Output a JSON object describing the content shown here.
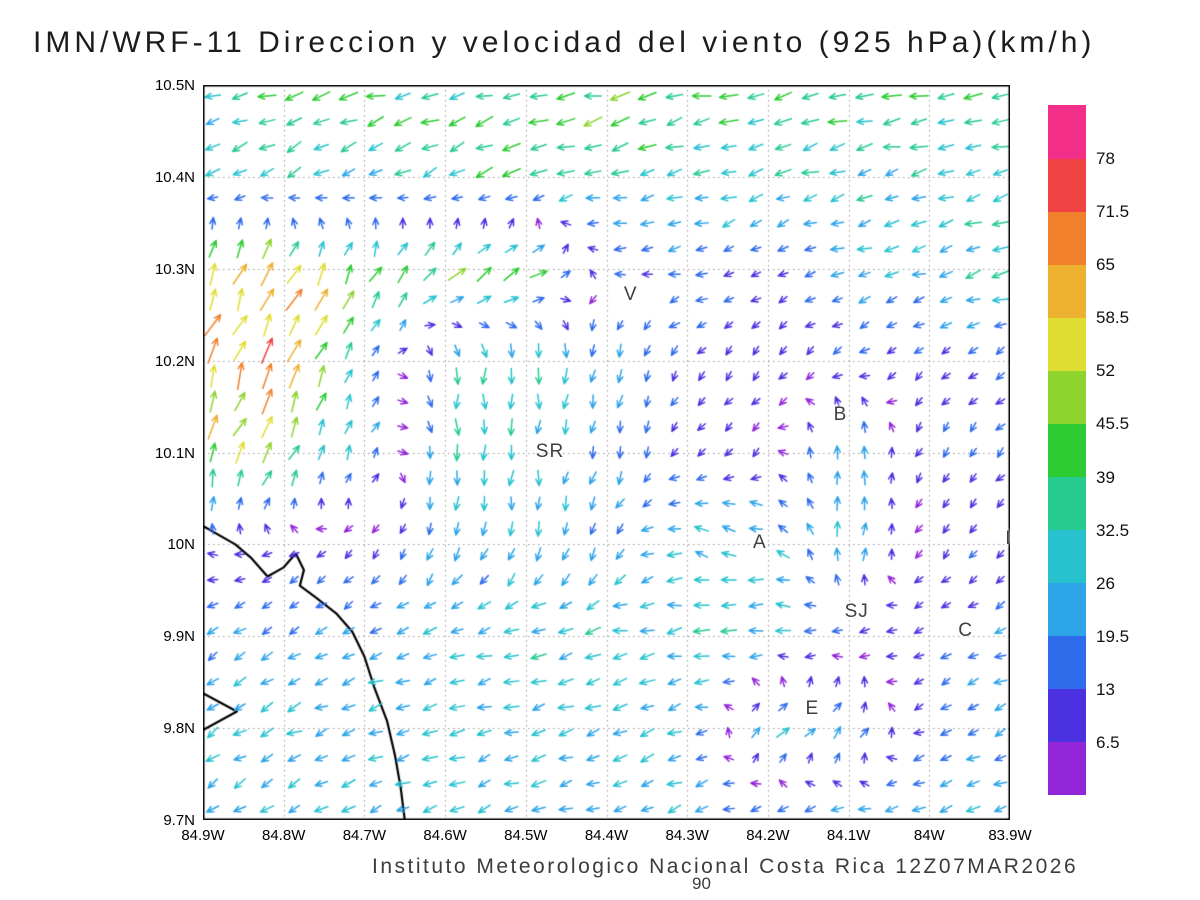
{
  "chart_data": {
    "type": "vector_field",
    "title": "IMN/WRF-11 Direccion y velocidad del viento (925 hPa)(km/h)",
    "caption": "Instituto Meteorologico Nacional Costa Rica 12Z07MAR2026",
    "stray_label": "90",
    "units": "km/h",
    "level_hpa": 925,
    "model": "IMN/WRF-11",
    "valid_time": "12Z07MAR2026",
    "x_axis": {
      "west": 84.9,
      "east": 83.9,
      "ticks": [
        "84.9W",
        "84.8W",
        "84.7W",
        "84.6W",
        "84.5W",
        "84.4W",
        "84.3W",
        "84.2W",
        "84.1W",
        "84W",
        "83.9W"
      ],
      "tick_lons": [
        84.9,
        84.8,
        84.7,
        84.6,
        84.5,
        84.4,
        84.3,
        84.2,
        84.1,
        84.0,
        83.9
      ]
    },
    "y_axis": {
      "south": 9.7,
      "north": 10.5,
      "ticks": [
        "10.5N",
        "10.4N",
        "10.3N",
        "10.2N",
        "10.1N",
        "10N",
        "9.9N",
        "9.8N",
        "9.7N"
      ],
      "tick_lats": [
        10.5,
        10.4,
        10.3,
        10.2,
        10.1,
        10.0,
        9.9,
        9.8,
        9.7
      ]
    },
    "colorbar": {
      "boundaries": [
        6.5,
        13,
        19.5,
        26,
        32.5,
        39,
        45.5,
        52,
        58.5,
        65,
        71.5,
        78
      ],
      "labels": [
        "6.5",
        "13",
        "19.5",
        "26",
        "32.5",
        "39",
        "45.5",
        "52",
        "58.5",
        "65",
        "71.5",
        "78"
      ],
      "colors_bottom_to_top": [
        "#9326d9",
        "#4b31e0",
        "#2f6ceb",
        "#2da4e8",
        "#28c2cf",
        "#27cb8f",
        "#2ecc33",
        "#8ed42f",
        "#e0dd32",
        "#eeb02f",
        "#f0802c",
        "#f04343",
        "#f22e88"
      ]
    },
    "wind_grid": {
      "comment": "Estimated u (east+) and v (north+) components in km/h on a coarse lon/lat grid read from the vector plot; rows ordered north to south, columns west to east.",
      "lons": [
        84.9,
        84.8,
        84.7,
        84.6,
        84.5,
        84.4,
        84.3,
        84.2,
        84.1,
        84.0,
        83.9
      ],
      "lats": [
        10.5,
        10.4,
        10.3,
        10.2,
        10.1,
        10.0,
        9.9,
        9.8,
        9.7
      ],
      "u": [
        [
          -30,
          -38,
          -40,
          -36,
          -42,
          -45,
          -42,
          -40,
          -38,
          -40,
          -38
        ],
        [
          -25,
          -30,
          -28,
          -30,
          -35,
          -30,
          -28,
          -30,
          -28,
          -30,
          -28
        ],
        [
          25,
          28,
          22,
          32,
          40,
          -12,
          -20,
          -8,
          -22,
          -25,
          -34
        ],
        [
          22,
          30,
          10,
          0,
          -2,
          -5,
          -8,
          -5,
          -10,
          -8,
          -12
        ],
        [
          18,
          20,
          8,
          2,
          -2,
          -5,
          -6,
          -4,
          5,
          -5,
          -10
        ],
        [
          -8,
          -8,
          -6,
          -5,
          -8,
          -10,
          -28,
          -30,
          8,
          -6,
          -8
        ],
        [
          -18,
          -20,
          -22,
          -25,
          -28,
          -30,
          -32,
          -28,
          -12,
          -10,
          -20
        ],
        [
          -22,
          -25,
          -24,
          -26,
          -28,
          -26,
          -24,
          25,
          18,
          -15,
          -18
        ],
        [
          -20,
          -22,
          -24,
          -25,
          -26,
          -25,
          -24,
          -22,
          -24,
          -26,
          -24
        ]
      ],
      "v": [
        [
          -10,
          -8,
          -10,
          -12,
          -10,
          -8,
          -10,
          -8,
          -10,
          -8,
          -8
        ],
        [
          -18,
          -20,
          -14,
          -18,
          -15,
          -10,
          -8,
          -10,
          -8,
          -8,
          -8
        ],
        [
          52,
          55,
          42,
          40,
          25,
          4,
          -5,
          -4,
          -6,
          -8,
          -10
        ],
        [
          58,
          62,
          25,
          -30,
          -35,
          -25,
          -10,
          -6,
          -8,
          -6,
          -8
        ],
        [
          50,
          40,
          22,
          -30,
          -32,
          -22,
          -8,
          -5,
          30,
          -12,
          -10
        ],
        [
          6,
          -4,
          -8,
          -25,
          -25,
          -20,
          8,
          6,
          32,
          -10,
          -8
        ],
        [
          -10,
          -12,
          -10,
          -8,
          -8,
          -6,
          -8,
          -6,
          -5,
          -6,
          -8
        ],
        [
          -15,
          -12,
          -10,
          -10,
          -8,
          -8,
          -8,
          18,
          25,
          -8,
          -8
        ],
        [
          -12,
          -12,
          -10,
          -10,
          -8,
          -8,
          -8,
          -8,
          -8,
          -8,
          -8
        ]
      ]
    },
    "cities": [
      {
        "label": "V",
        "lon": 84.37,
        "lat": 10.27
      },
      {
        "label": "B",
        "lon": 84.11,
        "lat": 10.14
      },
      {
        "label": "SR",
        "lon": 84.47,
        "lat": 10.1
      },
      {
        "label": "A",
        "lon": 84.21,
        "lat": 10.0
      },
      {
        "label": "SJ",
        "lon": 84.09,
        "lat": 9.925
      },
      {
        "label": "C",
        "lon": 83.955,
        "lat": 9.905
      },
      {
        "label": "E",
        "lon": 84.145,
        "lat": 9.82
      },
      {
        "label": "I",
        "lon": 83.902,
        "lat": 10.005
      }
    ],
    "coastline": [
      [
        [
          84.9,
          10.02
        ],
        [
          84.86,
          10.0
        ],
        [
          84.84,
          9.985
        ],
        [
          84.82,
          9.965
        ],
        [
          84.8,
          9.975
        ],
        [
          84.785,
          9.99
        ],
        [
          84.775,
          9.972
        ],
        [
          84.78,
          9.955
        ],
        [
          84.76,
          9.942
        ],
        [
          84.735,
          9.925
        ],
        [
          84.715,
          9.905
        ],
        [
          84.7,
          9.878
        ],
        [
          84.688,
          9.845
        ],
        [
          84.672,
          9.808
        ],
        [
          84.662,
          9.77
        ],
        [
          84.655,
          9.735
        ],
        [
          84.65,
          9.7
        ]
      ],
      [
        [
          84.9,
          9.838
        ],
        [
          84.858,
          9.818
        ],
        [
          84.9,
          9.798
        ]
      ]
    ],
    "grid_lines": {
      "spacing_deg": 0.1,
      "style": "dotted"
    }
  }
}
